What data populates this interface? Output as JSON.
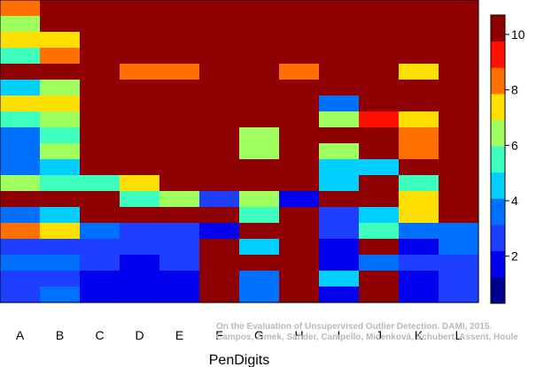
{
  "chart_data": {
    "type": "heatmap",
    "title": "",
    "xlabel": "PenDigits",
    "ylabel": "",
    "x_categories": [
      "A",
      "B",
      "C",
      "D",
      "E",
      "F",
      "G",
      "H",
      "I",
      "J",
      "K",
      "L"
    ],
    "colorbar": {
      "range": [
        0.3,
        10.7
      ],
      "ticks": [
        2,
        4,
        6,
        8,
        10
      ],
      "tick_labels": [
        "2",
        "4",
        "6",
        "8",
        "10"
      ],
      "colors": [
        "#00008f",
        "#0000ef",
        "#1f3fff",
        "#0070ff",
        "#00cfff",
        "#3fffbf",
        "#9fff5f",
        "#ffdf00",
        "#ff7000",
        "#ff1000",
        "#8f0000"
      ]
    },
    "cell_values_note": "rows listed top to bottom, one value per column A..L",
    "values": [
      [
        8,
        10,
        10,
        10,
        10,
        10,
        10,
        10,
        10,
        10,
        10,
        10
      ],
      [
        6,
        10,
        10,
        10,
        10,
        10,
        10,
        10,
        10,
        10,
        10,
        10
      ],
      [
        7,
        7,
        10,
        10,
        10,
        10,
        10,
        10,
        10,
        10,
        10,
        10
      ],
      [
        5,
        8,
        10,
        10,
        10,
        10,
        10,
        10,
        10,
        10,
        10,
        10
      ],
      [
        10,
        10,
        10,
        8,
        8,
        10,
        10,
        8,
        10,
        10,
        7,
        10
      ],
      [
        4,
        6,
        10,
        10,
        10,
        10,
        10,
        10,
        10,
        10,
        10,
        10
      ],
      [
        7,
        7,
        10,
        10,
        10,
        10,
        10,
        10,
        3,
        10,
        10,
        10
      ],
      [
        5,
        6,
        10,
        10,
        10,
        10,
        10,
        10,
        6,
        9,
        7,
        10
      ],
      [
        3,
        5,
        10,
        10,
        10,
        10,
        6,
        10,
        10,
        10,
        8,
        10
      ],
      [
        3,
        6,
        10,
        10,
        10,
        10,
        6,
        10,
        6,
        10,
        8,
        10
      ],
      [
        3,
        4,
        10,
        10,
        10,
        10,
        10,
        10,
        4,
        4,
        10,
        10
      ],
      [
        6,
        5,
        5,
        7,
        10,
        10,
        10,
        10,
        4,
        10,
        5,
        10
      ],
      [
        10,
        10,
        10,
        5,
        6,
        2,
        6,
        1,
        10,
        10,
        7,
        10
      ],
      [
        3,
        4,
        10,
        10,
        10,
        10,
        5,
        10,
        2,
        4,
        7,
        10
      ],
      [
        8,
        7,
        3,
        2,
        2,
        1,
        10,
        10,
        2,
        5,
        3,
        3
      ],
      [
        2,
        2,
        2,
        2,
        2,
        10,
        4,
        10,
        1,
        10,
        1,
        3
      ],
      [
        3,
        3,
        2,
        1,
        2,
        10,
        10,
        10,
        1,
        3,
        2,
        2
      ],
      [
        2,
        2,
        1,
        1,
        1,
        10,
        3,
        10,
        4,
        10,
        1,
        2
      ],
      [
        2,
        3,
        1,
        1,
        1,
        10,
        3,
        10,
        1,
        10,
        1,
        2
      ]
    ],
    "credit_line_1": "On the Evaluation of Unsupervised Outlier Detection. DAMI, 2015.",
    "credit_line_2": "Campos, Zimek, Sander, Campello, Micenková, Schubert, Assent, Houle"
  }
}
